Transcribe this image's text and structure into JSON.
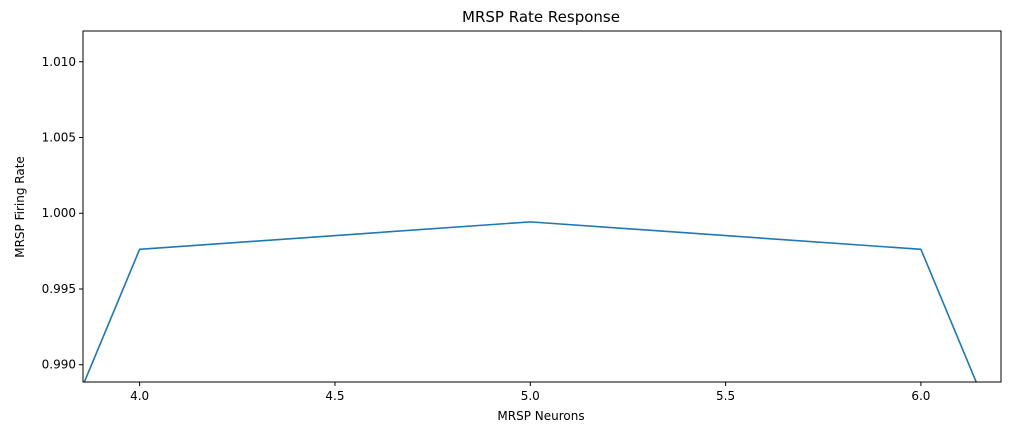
{
  "chart_data": {
    "type": "line",
    "title": "MRSP Rate Response",
    "xlabel": "MRSP Neurons",
    "ylabel": "MRSP Firing Rate",
    "xlim": [
      3.855,
      6.205
    ],
    "ylim": [
      0.98886,
      1.01203
    ],
    "x_ticks": [
      4.0,
      4.5,
      5.0,
      5.5,
      6.0
    ],
    "x_tick_labels": [
      "4.0",
      "4.5",
      "5.0",
      "5.5",
      "6.0"
    ],
    "y_ticks": [
      0.99,
      0.995,
      1.0,
      1.005,
      1.01
    ],
    "y_tick_labels": [
      "0.990",
      "0.995",
      "1.000",
      "1.005",
      "1.010"
    ],
    "grid": false,
    "series": [
      {
        "color": "#1f77b4",
        "x": [
          3.8,
          4.0,
          5.0,
          6.0,
          6.2
        ],
        "y": [
          0.98524,
          0.99762,
          0.99943,
          0.99762,
          0.98524
        ]
      }
    ]
  }
}
